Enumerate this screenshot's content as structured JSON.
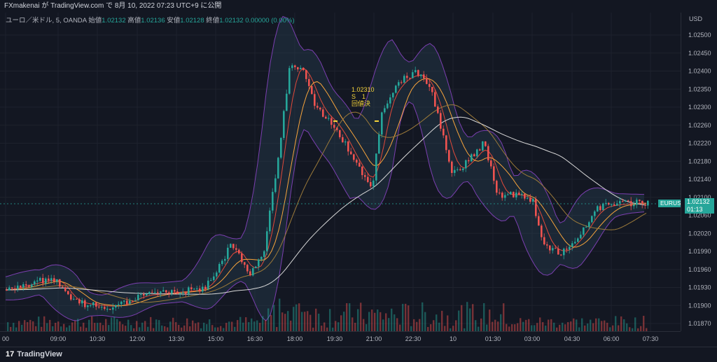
{
  "header": {
    "publish_text": "FXmakenai が TradingView.com で 8月 10, 2022 07:23 UTC+9 に公開"
  },
  "legend": {
    "symbol": "ユーロ／米ドル, 5, OANDA",
    "open_label": "始値",
    "open_value": "1.02132",
    "high_label": "高値",
    "high_value": "1.02136",
    "low_label": "安値",
    "low_value": "1.02128",
    "close_label": "終値",
    "close_value": "1.02132",
    "change": "0.00000 (0.00%)"
  },
  "price_axis": {
    "currency": "USD",
    "labels": [
      "1.02500",
      "1.02450",
      "1.02400",
      "1.02350",
      "1.02300",
      "1.02260",
      "1.02220",
      "1.02180",
      "1.02140",
      "1.02100",
      "1.02060",
      "1.02020",
      "1.01990",
      "1.01960",
      "1.01930",
      "1.01900",
      "1.01870"
    ]
  },
  "time_axis": {
    "labels": [
      "00",
      "09:00",
      "10:30",
      "12:00",
      "13:30",
      "15:00",
      "16:30",
      "18:00",
      "19:30",
      "21:00",
      "22:30",
      "10",
      "01:30",
      "03:00",
      "04:30",
      "06:00",
      "07:30"
    ]
  },
  "current": {
    "symbol": "EURUSD",
    "price": "1.02132",
    "countdown": "01:13"
  },
  "annotation": {
    "price": "1.02310",
    "line2": "S　1",
    "line3": "回値決"
  },
  "footer": {
    "brand": "TradingView",
    "logo_glyph": "17"
  },
  "colors": {
    "background": "#131722",
    "up": "#26a69a",
    "down": "#ef5350",
    "band": "#7b3fb0",
    "annotation": "#f5d33a"
  }
}
